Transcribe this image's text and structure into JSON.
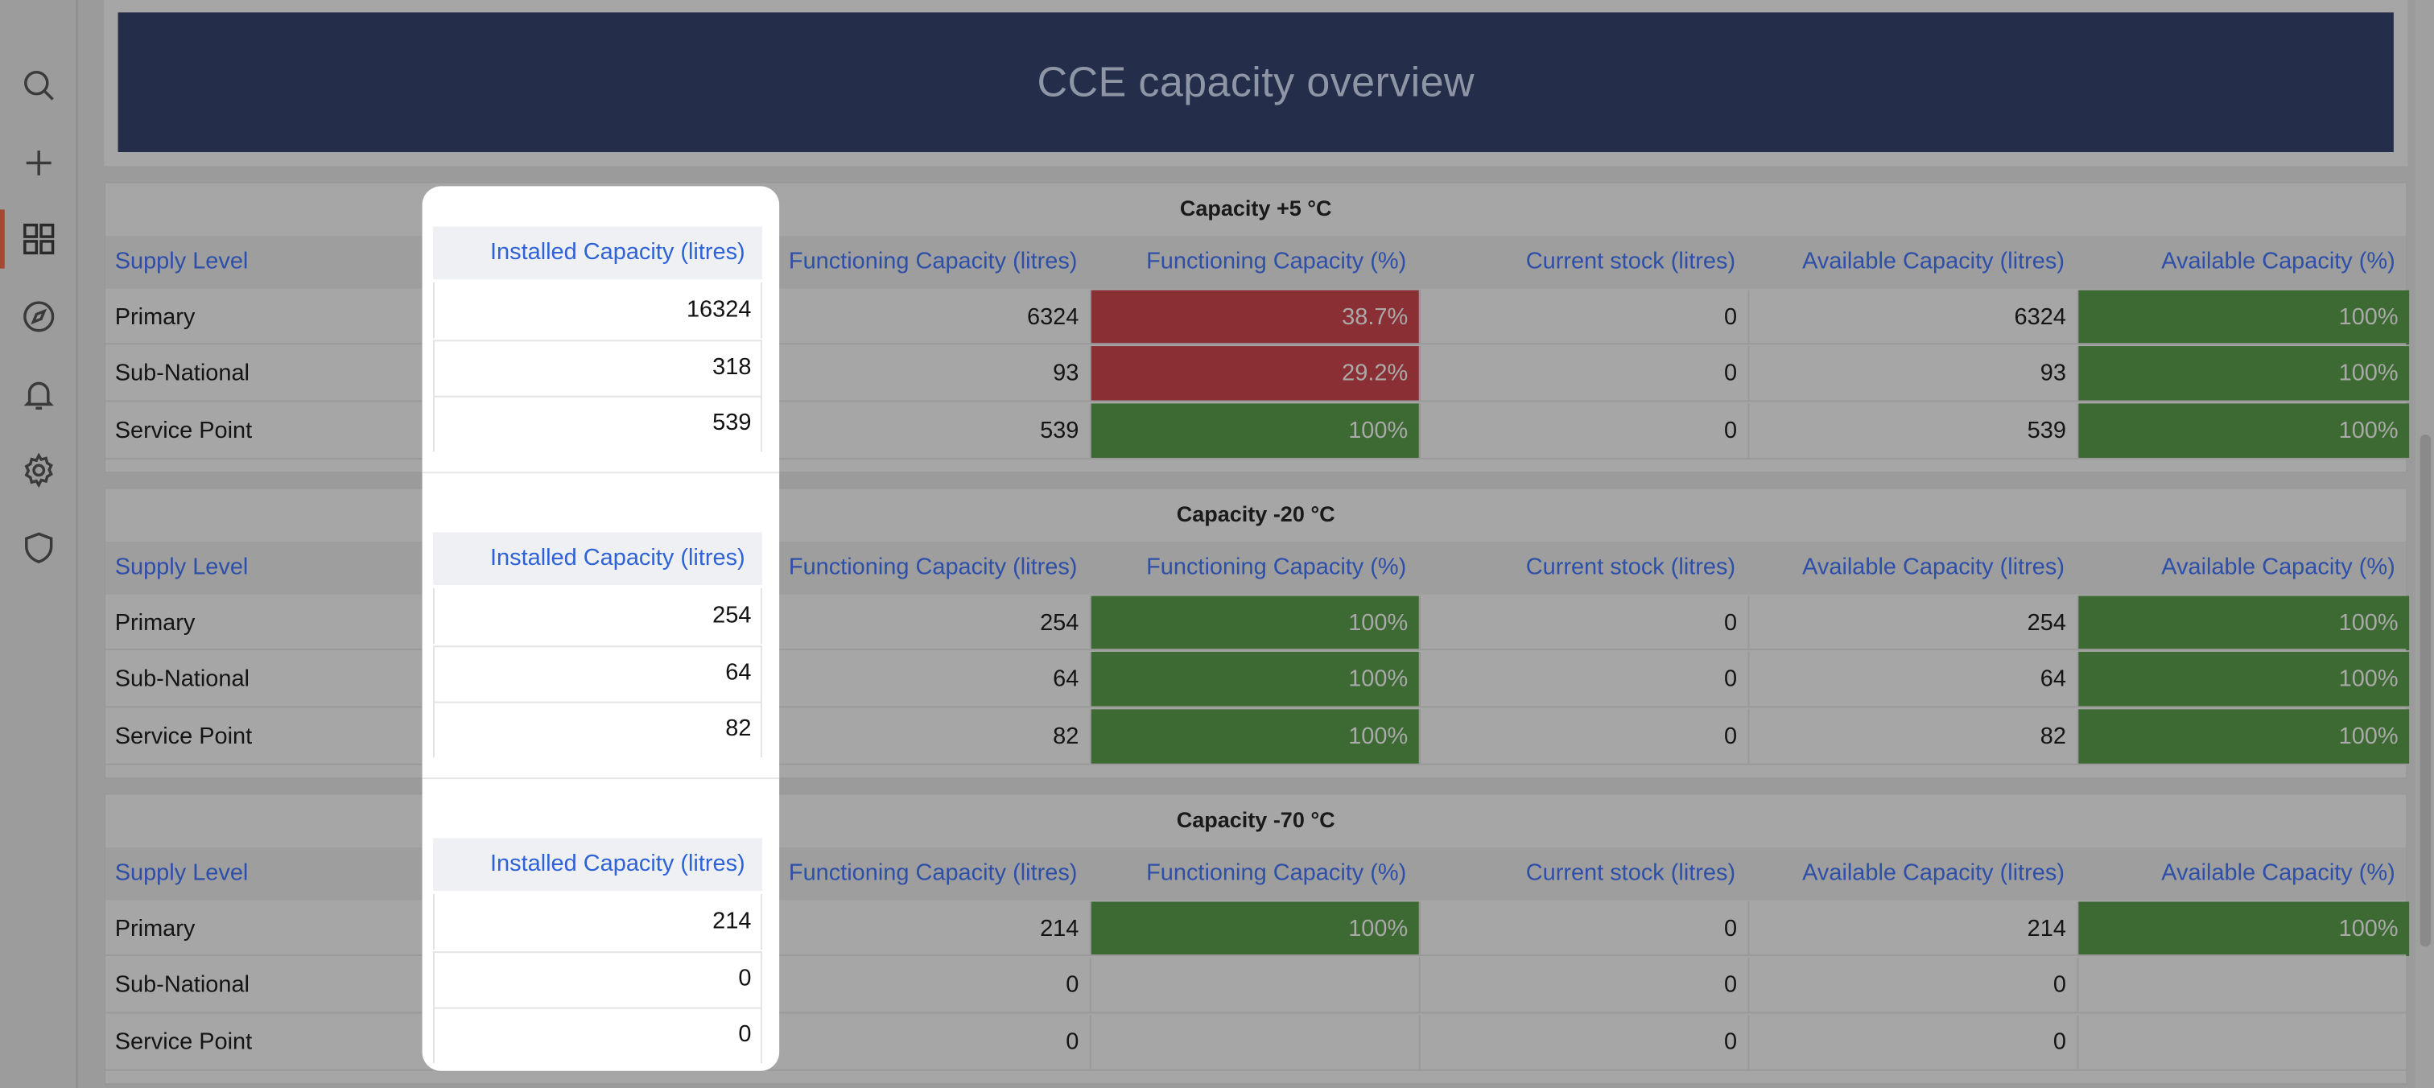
{
  "sidebar": {
    "items": [
      {
        "icon": "search-icon",
        "name": "nav-search"
      },
      {
        "icon": "plus-icon",
        "name": "nav-create"
      },
      {
        "icon": "dashboard-icon",
        "name": "nav-dashboards",
        "active": true
      },
      {
        "icon": "compass-icon",
        "name": "nav-explore"
      },
      {
        "icon": "bell-icon",
        "name": "nav-alerts"
      },
      {
        "icon": "gear-icon",
        "name": "nav-settings"
      },
      {
        "icon": "shield-icon",
        "name": "nav-security"
      }
    ]
  },
  "header": {
    "title": "CCE capacity overview"
  },
  "columns": [
    "Supply Level",
    "Installed Capacity (litres)",
    "Functioning Capacity (litres)",
    "Functioning Capacity (%)",
    "Current stock (litres)",
    "Available Capacity (litres)",
    "Available Capacity (%)"
  ],
  "colors": {
    "banner": "#242d4a",
    "red": "#8a2f34",
    "green": "#3d6a32",
    "link": "#2e4fa8"
  },
  "tables": [
    {
      "title": "Capacity +5 °C",
      "rows": [
        {
          "level": "Primary",
          "installed": "16324",
          "functioning": "6324",
          "functioning_pct": "38.7%",
          "functioning_pct_status": "red",
          "stock": "0",
          "available": "6324",
          "available_pct": "100%",
          "available_pct_status": "green"
        },
        {
          "level": "Sub-National",
          "installed": "318",
          "functioning": "93",
          "functioning_pct": "29.2%",
          "functioning_pct_status": "red",
          "stock": "0",
          "available": "93",
          "available_pct": "100%",
          "available_pct_status": "green"
        },
        {
          "level": "Service Point",
          "installed": "539",
          "functioning": "539",
          "functioning_pct": "100%",
          "functioning_pct_status": "green",
          "stock": "0",
          "available": "539",
          "available_pct": "100%",
          "available_pct_status": "green"
        }
      ]
    },
    {
      "title": "Capacity -20 °C",
      "rows": [
        {
          "level": "Primary",
          "installed": "254",
          "functioning": "254",
          "functioning_pct": "100%",
          "functioning_pct_status": "green",
          "stock": "0",
          "available": "254",
          "available_pct": "100%",
          "available_pct_status": "green"
        },
        {
          "level": "Sub-National",
          "installed": "64",
          "functioning": "64",
          "functioning_pct": "100%",
          "functioning_pct_status": "green",
          "stock": "0",
          "available": "64",
          "available_pct": "100%",
          "available_pct_status": "green"
        },
        {
          "level": "Service Point",
          "installed": "82",
          "functioning": "82",
          "functioning_pct": "100%",
          "functioning_pct_status": "green",
          "stock": "0",
          "available": "82",
          "available_pct": "100%",
          "available_pct_status": "green"
        }
      ]
    },
    {
      "title": "Capacity -70 °C",
      "rows": [
        {
          "level": "Primary",
          "installed": "214",
          "functioning": "214",
          "functioning_pct": "100%",
          "functioning_pct_status": "green",
          "stock": "0",
          "available": "214",
          "available_pct": "100%",
          "available_pct_status": "green"
        },
        {
          "level": "Sub-National",
          "installed": "0",
          "functioning": "0",
          "functioning_pct": "",
          "functioning_pct_status": "none",
          "stock": "0",
          "available": "0",
          "available_pct": "",
          "available_pct_status": "none"
        },
        {
          "level": "Service Point",
          "installed": "0",
          "functioning": "0",
          "functioning_pct": "",
          "functioning_pct_status": "none",
          "stock": "0",
          "available": "0",
          "available_pct": "",
          "available_pct_status": "none"
        }
      ]
    }
  ]
}
